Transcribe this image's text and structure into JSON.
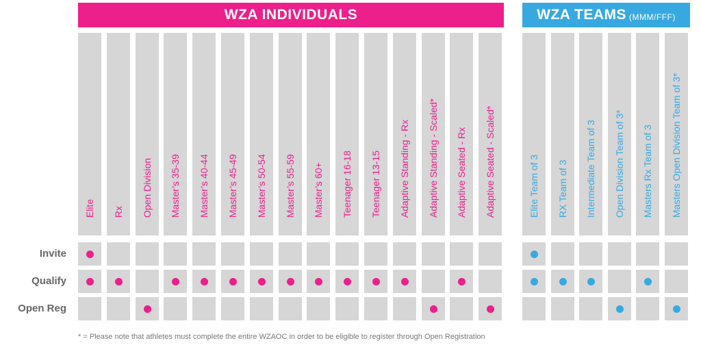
{
  "colors": {
    "individual": "#ec1f8b",
    "team": "#37a9e0",
    "cell": "#d6d6d6",
    "label": "#666666"
  },
  "banners": {
    "individuals": "WZA INDIVIDUALS",
    "teams": "WZA TEAMS",
    "teams_sub": "(MMM/FFF)"
  },
  "row_labels": [
    "Invite",
    "Qualify",
    "Open Reg"
  ],
  "individual_divisions": [
    {
      "name": "Elite",
      "invite": true,
      "qualify": true,
      "open_reg": false
    },
    {
      "name": "Rx",
      "invite": false,
      "qualify": true,
      "open_reg": false
    },
    {
      "name": "Open Division",
      "invite": false,
      "qualify": false,
      "open_reg": true
    },
    {
      "name": "Master’s 35-39",
      "invite": false,
      "qualify": true,
      "open_reg": false
    },
    {
      "name": "Master’s 40-44",
      "invite": false,
      "qualify": true,
      "open_reg": false
    },
    {
      "name": "Master’s 45-49",
      "invite": false,
      "qualify": true,
      "open_reg": false
    },
    {
      "name": "Master’s 50-54",
      "invite": false,
      "qualify": true,
      "open_reg": false
    },
    {
      "name": "Master’s 55-59",
      "invite": false,
      "qualify": true,
      "open_reg": false
    },
    {
      "name": "Master’s 60+",
      "invite": false,
      "qualify": true,
      "open_reg": false
    },
    {
      "name": "Teenager 16-18",
      "invite": false,
      "qualify": true,
      "open_reg": false
    },
    {
      "name": "Teenager 13-15",
      "invite": false,
      "qualify": true,
      "open_reg": false
    },
    {
      "name": "Adaptive Standing - Rx",
      "invite": false,
      "qualify": true,
      "open_reg": false
    },
    {
      "name": "Adaptive Standing - Scaled*",
      "invite": false,
      "qualify": false,
      "open_reg": true
    },
    {
      "name": "Adaptive Seated - Rx",
      "invite": false,
      "qualify": true,
      "open_reg": false
    },
    {
      "name": "Adaptive Seated - Scaled*",
      "invite": false,
      "qualify": false,
      "open_reg": true
    }
  ],
  "team_divisions": [
    {
      "name": "Elite Team of 3",
      "invite": true,
      "qualify": true,
      "open_reg": false
    },
    {
      "name": "RX Team of 3",
      "invite": false,
      "qualify": true,
      "open_reg": false
    },
    {
      "name": "Intermediate Team of 3",
      "invite": false,
      "qualify": true,
      "open_reg": false
    },
    {
      "name": "Open Division Team of 3*",
      "invite": false,
      "qualify": false,
      "open_reg": true
    },
    {
      "name": "Masters Rx Team of 3",
      "invite": false,
      "qualify": true,
      "open_reg": false
    },
    {
      "name": "Masters Open Division Team of 3*",
      "invite": false,
      "qualify": false,
      "open_reg": true
    }
  ],
  "footnote": "* = Please note that athletes must complete the entire WZAOC in order to be eligible to register through Open Registration"
}
